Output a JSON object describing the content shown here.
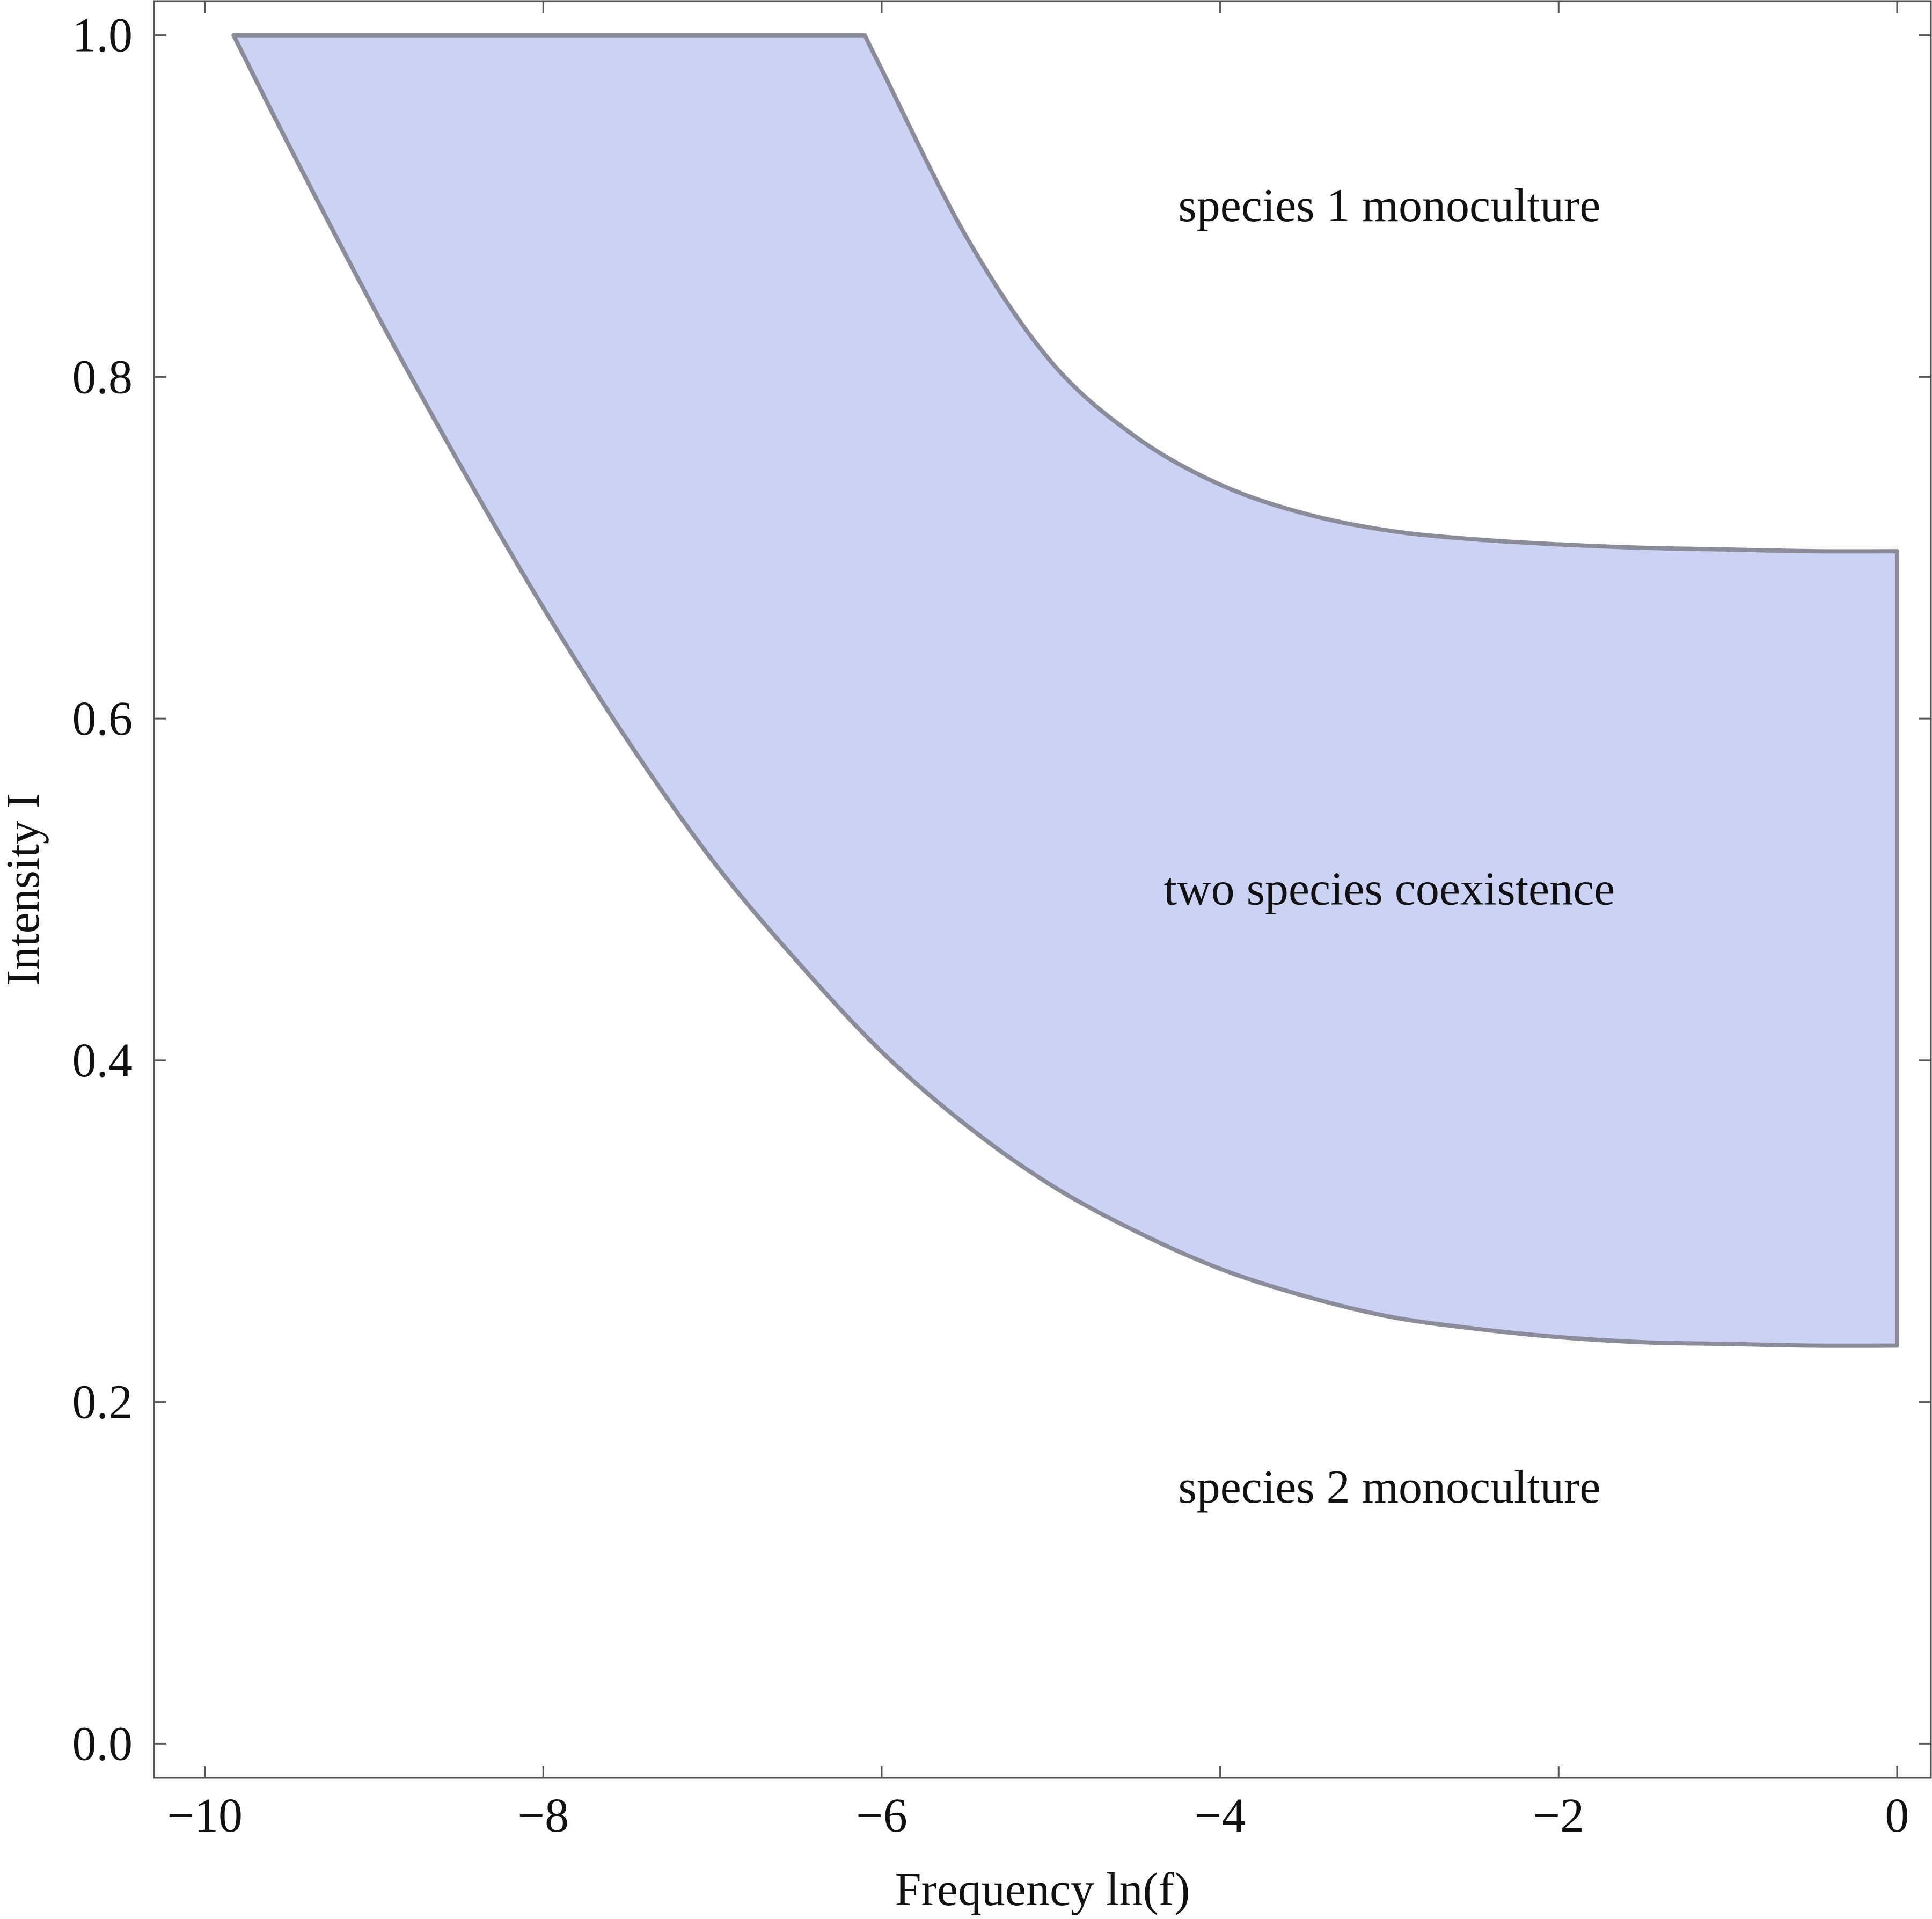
{
  "chart_data": {
    "type": "area",
    "xlabel": "Frequency ln(f)",
    "ylabel": "Intensity I",
    "xlim": [
      -10.3,
      0.2
    ],
    "ylim": [
      -0.02,
      1.02
    ],
    "x_ticks": [
      -10,
      -8,
      -6,
      -4,
      -2,
      0
    ],
    "x_tick_labels": [
      "−10",
      "−8",
      "−6",
      "−4",
      "−2",
      "0"
    ],
    "y_ticks": [
      0.0,
      0.2,
      0.4,
      0.6,
      0.8,
      1.0
    ],
    "y_tick_labels": [
      "0.0",
      "0.2",
      "0.4",
      "0.6",
      "0.8",
      "1.0"
    ],
    "grid": false,
    "fill_color": "#ccd2f4",
    "edge_color": "#8a8d99",
    "upper_boundary": {
      "x": [
        -9.83,
        -8.0,
        -6.1,
        -6.0,
        -5.5,
        -5.0,
        -4.5,
        -4.0,
        -3.5,
        -3.0,
        -2.5,
        -2.0,
        -1.5,
        -1.0,
        -0.5,
        0.0
      ],
      "y": [
        1.0,
        1.0,
        1.0,
        0.98,
        0.882,
        0.809,
        0.765,
        0.737,
        0.72,
        0.71,
        0.705,
        0.702,
        0.7,
        0.699,
        0.698,
        0.698
      ]
    },
    "lower_boundary": {
      "x": [
        -9.83,
        -9.5,
        -9.0,
        -8.5,
        -8.0,
        -7.5,
        -7.0,
        -6.5,
        -6.0,
        -5.5,
        -5.0,
        -4.5,
        -4.0,
        -3.5,
        -3.0,
        -2.5,
        -2.0,
        -1.5,
        -1.0,
        -0.5,
        0.0
      ],
      "y": [
        1.0,
        0.935,
        0.84,
        0.75,
        0.665,
        0.587,
        0.517,
        0.458,
        0.405,
        0.362,
        0.327,
        0.3,
        0.278,
        0.262,
        0.25,
        0.243,
        0.238,
        0.235,
        0.234,
        0.233,
        0.233
      ]
    },
    "annotations": [
      {
        "text": "species 1 monoculture",
        "x": -3.0,
        "y": 0.9
      },
      {
        "text": "two species coexistence",
        "x": -3.0,
        "y": 0.5
      },
      {
        "text": "species 2 monoculture",
        "x": -3.0,
        "y": 0.15
      }
    ]
  }
}
